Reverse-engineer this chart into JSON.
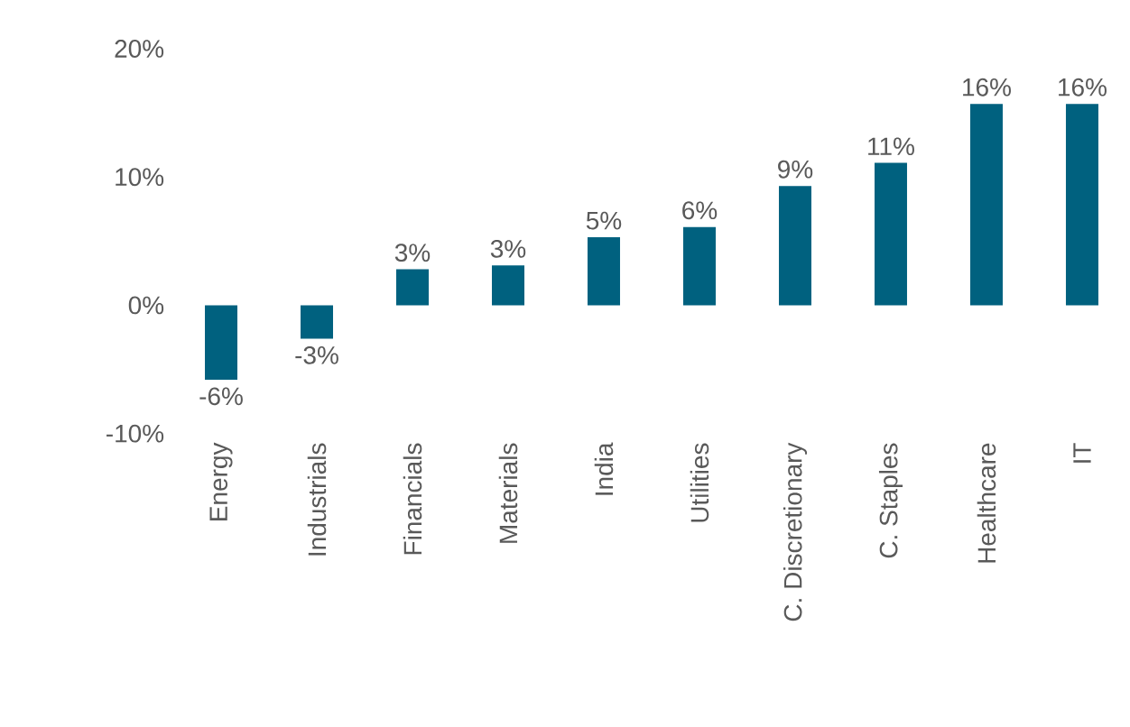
{
  "chart_data": {
    "type": "bar",
    "categories": [
      "Energy",
      "Industrials",
      "Financials",
      "Materials",
      "India",
      "Utilities",
      "C. Discretionary",
      "C. Staples",
      "Healthcare",
      "IT"
    ],
    "values": [
      -5.8,
      -2.6,
      2.8,
      3.1,
      5.3,
      6.1,
      9.3,
      11.1,
      15.7,
      15.7
    ],
    "value_labels": [
      "-6%",
      "-3%",
      "3%",
      "3%",
      "5%",
      "6%",
      "9%",
      "11%",
      "16%",
      "16%"
    ],
    "color": "#00617f",
    "ylim": [
      -10,
      20
    ],
    "yticks": [
      {
        "value": -10,
        "label": "-10%"
      },
      {
        "value": 0,
        "label": "0%"
      },
      {
        "value": 10,
        "label": "10%"
      },
      {
        "value": 20,
        "label": "20%"
      }
    ],
    "grid": false
  }
}
